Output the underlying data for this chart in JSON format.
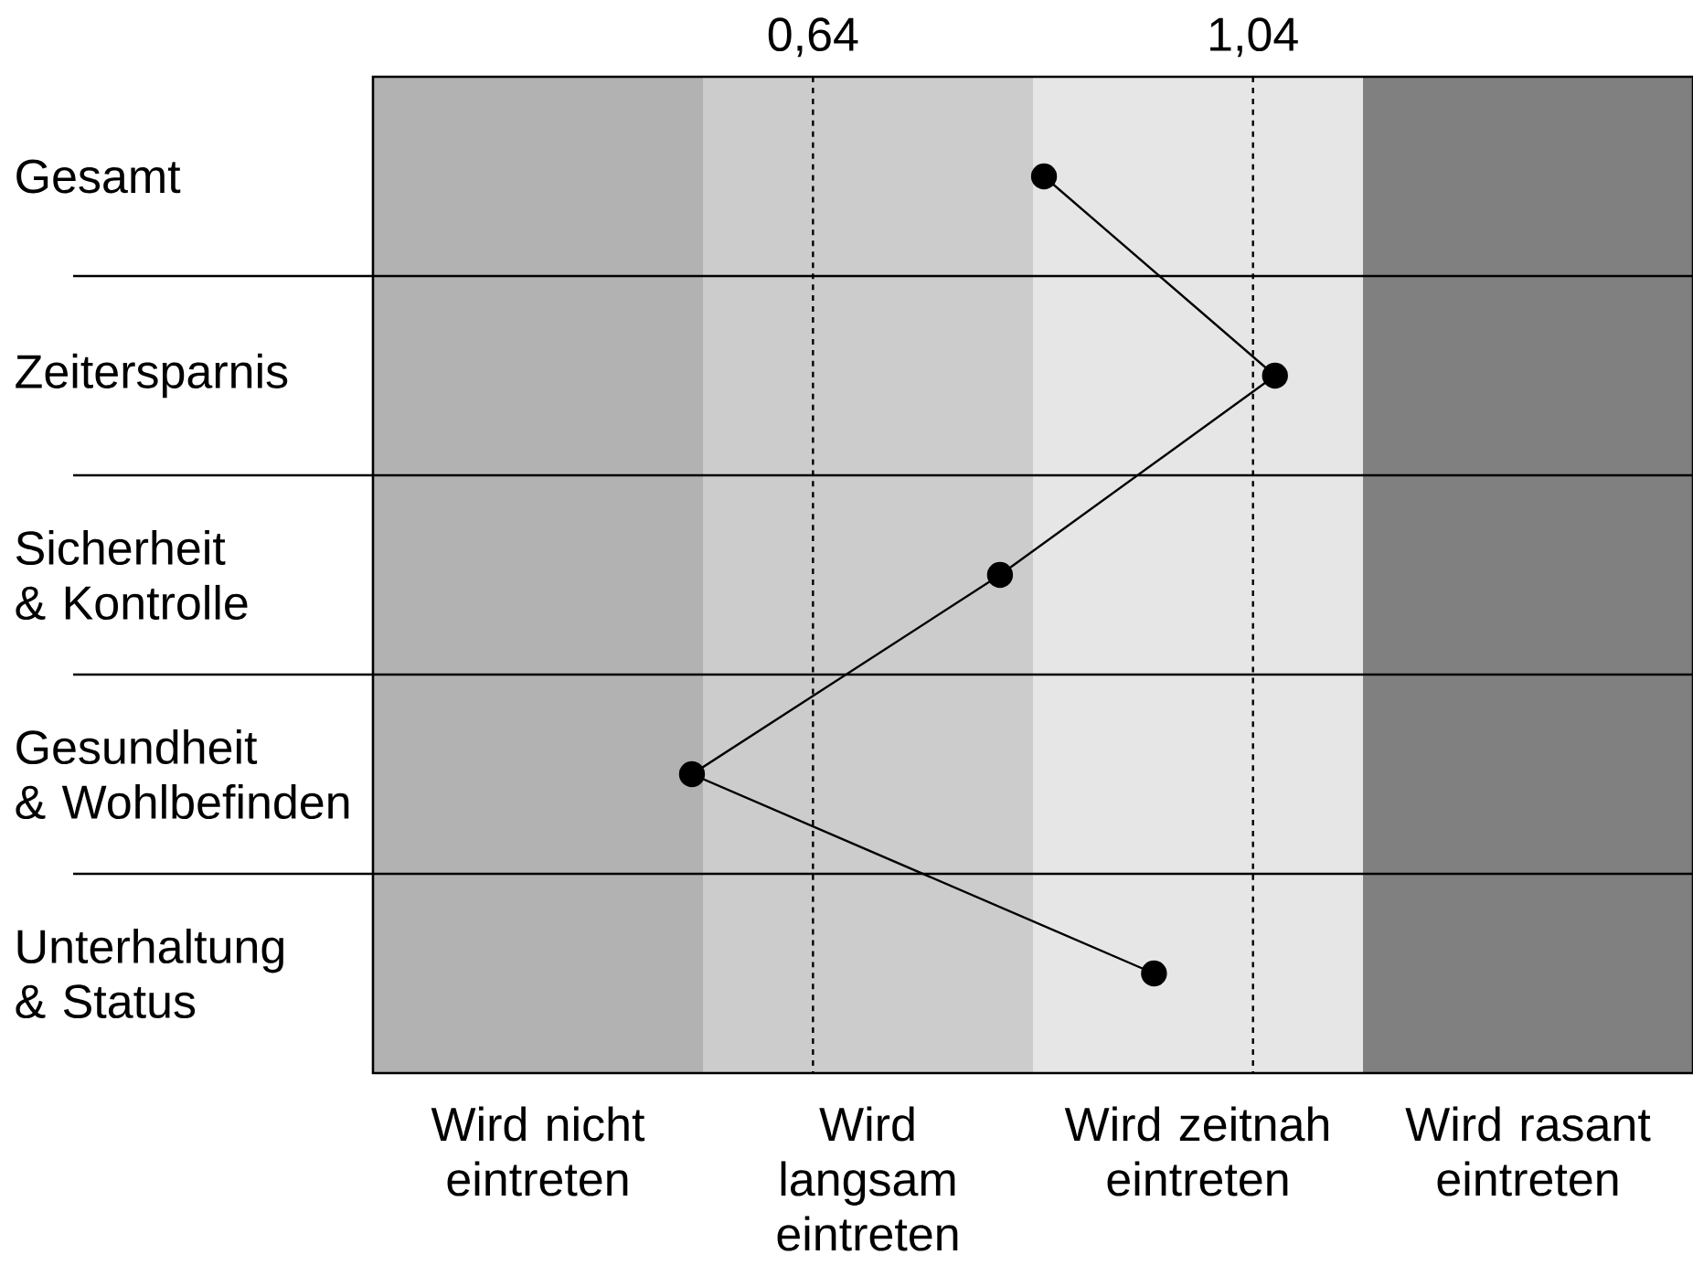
{
  "chart_data": {
    "type": "line",
    "orientation": "horizontal",
    "categories": [
      "Gesamt",
      "Zeitersparnis",
      "Sicherheit & Kontrolle",
      "Gesundheit & Wohlbefinden",
      "Unterhaltung & Status"
    ],
    "series": [
      {
        "color": "#000000",
        "values": [
          0.85,
          1.06,
          0.81,
          0.53,
          0.95
        ]
      }
    ],
    "marker": "circle",
    "line_style": "solid",
    "grid": "y",
    "xlim": [
      0.24,
      1.44
    ],
    "xticks": [
      {
        "value": 0.64,
        "label": "0,64"
      },
      {
        "value": 1.04,
        "label": "1,04"
      }
    ],
    "ref_lines": [
      {
        "axis": "x",
        "value": 0.64,
        "line_style": "dashed",
        "color": "#000000"
      },
      {
        "axis": "x",
        "value": 1.04,
        "line_style": "dashed",
        "color": "#000000"
      }
    ],
    "bands": [
      {
        "axis": "x",
        "from": 0.24,
        "to": 0.54,
        "label": "Wird nicht eintreten",
        "color": "#b2b2b2"
      },
      {
        "axis": "x",
        "from": 0.54,
        "to": 0.84,
        "label": "Wird langsam eintreten",
        "color": "#cccccc"
      },
      {
        "axis": "x",
        "from": 0.84,
        "to": 1.14,
        "label": "Wird zeitnah eintreten",
        "color": "#e6e6e6"
      },
      {
        "axis": "x",
        "from": 1.14,
        "to": 1.44,
        "label": "Wird rasant eintreten",
        "color": "#808080"
      }
    ]
  }
}
